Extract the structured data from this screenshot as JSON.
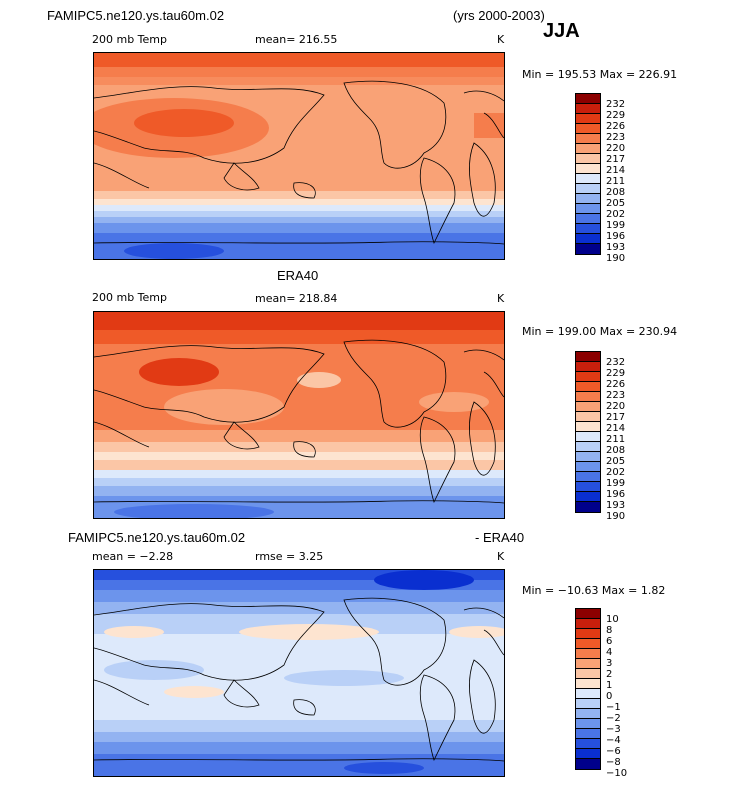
{
  "header": {
    "case_name": "FAMIPC5.ne120.ys.tau60m.02",
    "years": "(yrs 2000-2003)",
    "season": "JJA"
  },
  "panels": [
    {
      "title": "",
      "left_label": "200 mb Temp",
      "center_label": "mean=  216.55",
      "units": "K",
      "stats": "Min = 195.53  Max = 226.91",
      "colorbar_labels": [
        "232",
        "229",
        "226",
        "223",
        "220",
        "217",
        "214",
        "211",
        "208",
        "205",
        "202",
        "199",
        "196",
        "193",
        "190"
      ],
      "colorbar_colors": [
        "#8b0000",
        "#c81f0c",
        "#e13a14",
        "#ef5a28",
        "#f57d4c",
        "#f9a276",
        "#fbc6a6",
        "#fde4d0",
        "#dde9fb",
        "#b9d0f7",
        "#93b3f1",
        "#6c94ec",
        "#4a74e6",
        "#2650dd",
        "#0a2fd0",
        "#00008b"
      ]
    },
    {
      "title": "ERA40",
      "left_label": "200 mb Temp",
      "center_label": "mean=  218.84",
      "units": "K",
      "stats": "Min = 199.00  Max = 230.94",
      "colorbar_labels": [
        "232",
        "229",
        "226",
        "223",
        "220",
        "217",
        "214",
        "211",
        "208",
        "205",
        "202",
        "199",
        "196",
        "193",
        "190"
      ],
      "colorbar_colors": [
        "#8b0000",
        "#c81f0c",
        "#e13a14",
        "#ef5a28",
        "#f57d4c",
        "#f9a276",
        "#fbc6a6",
        "#fde4d0",
        "#dde9fb",
        "#b9d0f7",
        "#93b3f1",
        "#6c94ec",
        "#4a74e6",
        "#2650dd",
        "#0a2fd0",
        "#00008b"
      ]
    },
    {
      "title": "FAMIPC5.ne120.ys.tau60m.02",
      "title_right": "- ERA40",
      "left_label": "mean =   −2.28",
      "center_label": "rmse =    3.25",
      "units": "K",
      "stats": "Min = −10.63  Max =    1.82",
      "colorbar_labels": [
        "10",
        "8",
        "6",
        "4",
        "3",
        "2",
        "1",
        "0",
        "−1",
        "−2",
        "−3",
        "−4",
        "−6",
        "−8",
        "−10"
      ],
      "colorbar_colors": [
        "#8b0000",
        "#c81f0c",
        "#e13a14",
        "#ef5a28",
        "#f57d4c",
        "#f9a276",
        "#fbc6a6",
        "#fde4d0",
        "#dde9fb",
        "#b9d0f7",
        "#93b3f1",
        "#6c94ec",
        "#4a74e6",
        "#2650dd",
        "#0a2fd0",
        "#00008b"
      ]
    }
  ]
}
